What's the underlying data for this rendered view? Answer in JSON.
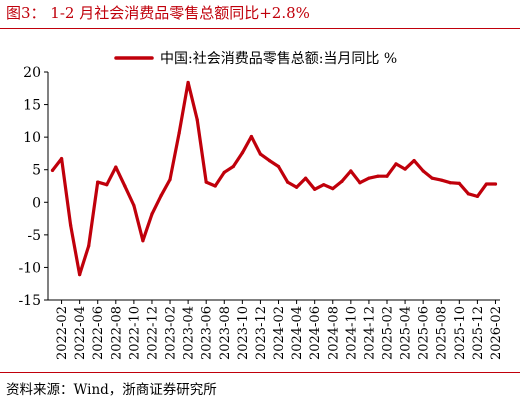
{
  "figure": {
    "title": "图3：  1-2 月社会消费品零售总额同比+2.8%",
    "source": "资料来源：Wind，浙商证券研究所"
  },
  "colors": {
    "accent": "#c0000b",
    "series": "#c0000b",
    "axis": "#000000"
  },
  "chart_data": {
    "type": "line",
    "series": [
      {
        "name": "中国:社会消费品零售总额:当月同比 %",
        "x": [
          "2022-01",
          "2022-02",
          "2022-03",
          "2022-04",
          "2022-05",
          "2022-06",
          "2022-07",
          "2022-08",
          "2022-09",
          "2022-10",
          "2022-11",
          "2022-12",
          "2023-01",
          "2023-02",
          "2023-03",
          "2023-04",
          "2023-05",
          "2023-06",
          "2023-07",
          "2023-08",
          "2023-09",
          "2023-10",
          "2023-11",
          "2023-12",
          "2024-01",
          "2024-02",
          "2024-03",
          "2024-04",
          "2024-05",
          "2024-06",
          "2024-07",
          "2024-08",
          "2024-09",
          "2024-10",
          "2024-11",
          "2024-12",
          "2025-01",
          "2025-02",
          "2025-03",
          "2025-04",
          "2025-05",
          "2025-06",
          "2025-07",
          "2025-08",
          "2025-09",
          "2025-10",
          "2025-11",
          "2025-12",
          "2026-01",
          "2026-02"
        ],
        "values": [
          4.9,
          6.7,
          -3.5,
          -11.1,
          -6.7,
          3.1,
          2.7,
          5.4,
          2.5,
          -0.5,
          -5.9,
          -1.8,
          1.0,
          3.5,
          10.6,
          18.4,
          12.7,
          3.1,
          2.5,
          4.6,
          5.5,
          7.6,
          10.1,
          7.4,
          6.4,
          5.5,
          3.1,
          2.3,
          3.7,
          2.0,
          2.7,
          2.1,
          3.2,
          4.8,
          3.0,
          3.7,
          4.0,
          4.0,
          5.9,
          5.1,
          6.4,
          4.8,
          3.7,
          3.4,
          3.0,
          2.9,
          1.3,
          0.9,
          2.8,
          2.8
        ]
      }
    ],
    "x_tick_labels": [
      "2022-02",
      "2022-04",
      "2022-06",
      "2022-08",
      "2022-10",
      "2022-12",
      "2023-02",
      "2023-04",
      "2023-06",
      "2023-08",
      "2023-10",
      "2023-12",
      "2024-02",
      "2024-04",
      "2024-06",
      "2024-08",
      "2024-10",
      "2024-12",
      "2025-02",
      "2025-04",
      "2025-06",
      "2025-08",
      "2025-10",
      "2025-12",
      "2026-02"
    ],
    "y_ticks": [
      20,
      15,
      10,
      5,
      0,
      -5,
      -10,
      -15
    ],
    "ylim": [
      -15,
      20
    ],
    "legend": {
      "label": "中国:社会消费品零售总额:当月同比 %",
      "position": "top-right"
    },
    "grid": false
  }
}
